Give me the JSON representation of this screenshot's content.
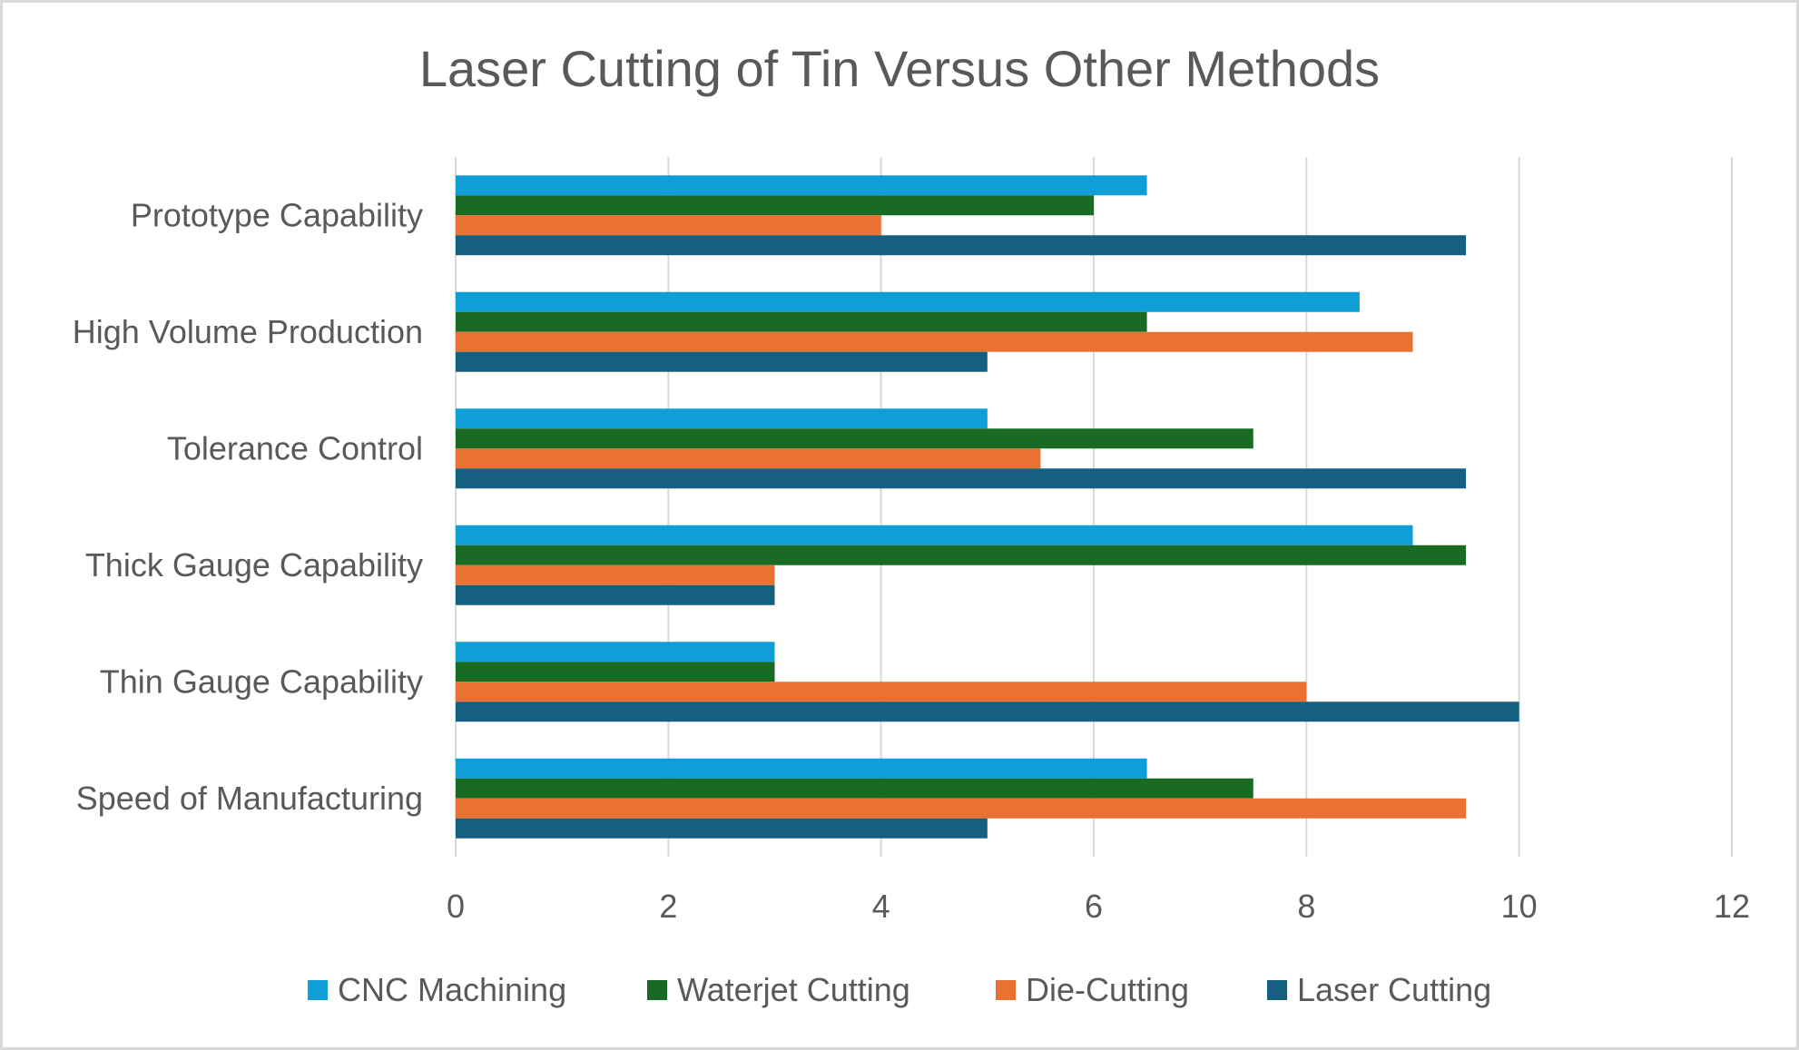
{
  "chart_data": {
    "type": "bar",
    "orientation": "horizontal",
    "title": "Laser Cutting of Tin Versus Other Methods",
    "xlabel": "",
    "ylabel": "",
    "xlim": [
      0,
      12
    ],
    "x_ticks": [
      0,
      2,
      4,
      6,
      8,
      10,
      12
    ],
    "grid": true,
    "legend_position": "bottom",
    "categories": [
      "Prototype Capability",
      "High Volume Production",
      "Tolerance Control",
      "Thick Gauge Capability",
      "Thin Gauge Capability",
      "Speed of Manufacturing"
    ],
    "series": [
      {
        "name": "CNC Machining",
        "color": "#0f9ed5",
        "values": [
          6.5,
          8.5,
          5,
          9,
          3,
          6.5
        ]
      },
      {
        "name": "Waterjet Cutting",
        "color": "#196b24",
        "values": [
          6,
          6.5,
          7.5,
          9.5,
          3,
          7.5
        ]
      },
      {
        "name": "Die-Cutting",
        "color": "#e97132",
        "values": [
          4,
          9,
          5.5,
          3,
          8,
          9.5
        ]
      },
      {
        "name": "Laser Cutting",
        "color": "#156082",
        "values": [
          9.5,
          5,
          9.5,
          3,
          10,
          5
        ]
      }
    ]
  }
}
